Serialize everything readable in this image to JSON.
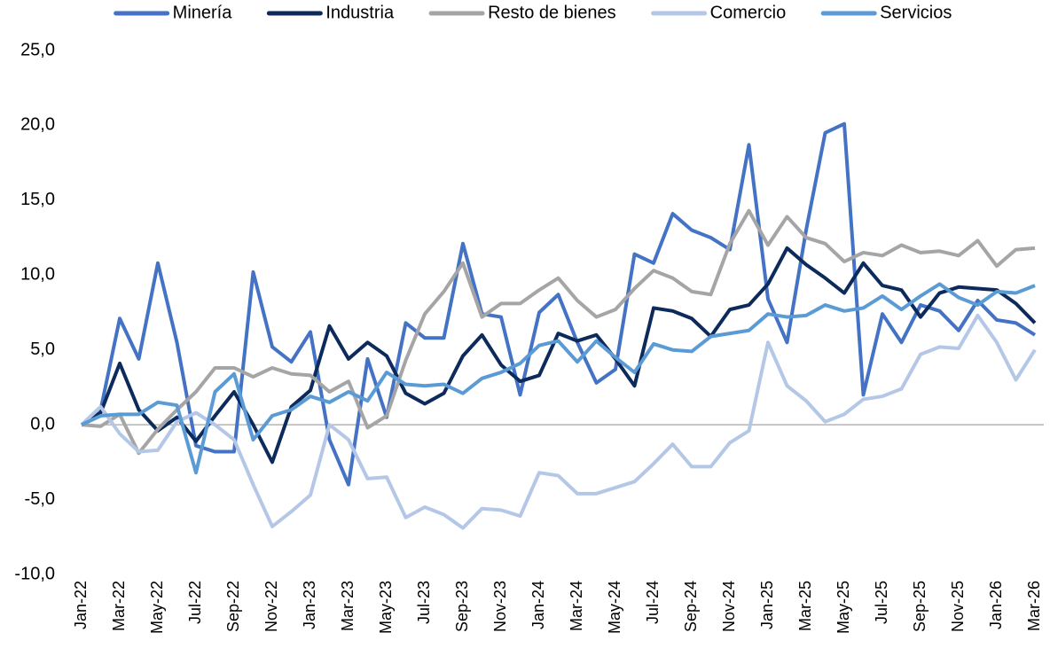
{
  "chart_data": {
    "type": "line",
    "categories": [
      "Jan-22",
      null,
      "Mar-22",
      null,
      "May-22",
      null,
      "Jul-22",
      null,
      "Sep-22",
      null,
      "Nov-22",
      null,
      "Jan-23",
      null,
      "Mar-23",
      null,
      "May-23",
      null,
      "Jul-23",
      null,
      "Sep-23",
      null,
      "Nov-23",
      null,
      "Jan-24",
      null,
      "Mar-24",
      null,
      "May-24",
      null,
      "Jul-24",
      null,
      "Sep-24",
      null,
      "Nov-24",
      null,
      "Jan-25",
      null,
      "Mar-25",
      null,
      "May-25",
      null,
      "Jul-25",
      null,
      "Sep-25",
      null,
      "Nov-25",
      null,
      "Jan-26",
      null,
      "Mar-26"
    ],
    "series": [
      {
        "name": "Minería",
        "color": "#4472c4",
        "values": [
          0,
          1.0,
          7.1,
          4.4,
          10.8,
          5.5,
          -1.4,
          -1.8,
          -1.8,
          10.2,
          5.2,
          4.2,
          6.2,
          -1.0,
          -4.0,
          4.4,
          0.5,
          6.8,
          5.8,
          5.8,
          12.1,
          7.4,
          7.2,
          2.0,
          7.5,
          8.7,
          5.5,
          2.8,
          3.7,
          11.4,
          10.8,
          14.1,
          13.0,
          12.5,
          11.7,
          18.7,
          8.4,
          5.5,
          13.0,
          19.5,
          20.1,
          2.0,
          7.4,
          5.5,
          8.0,
          7.6,
          6.3,
          8.3,
          7.0,
          6.8,
          6.0
        ]
      },
      {
        "name": "Industria",
        "color": "#0c2a5b",
        "values": [
          0,
          0.8,
          4.1,
          1.0,
          -0.4,
          0.5,
          -1.1,
          0.6,
          2.2,
          0,
          -2.5,
          1.2,
          2.3,
          6.6,
          4.4,
          5.5,
          4.6,
          2.1,
          1.4,
          2.1,
          4.6,
          6.0,
          4.0,
          2.9,
          3.3,
          6.1,
          5.6,
          6.0,
          4.4,
          2.6,
          7.8,
          7.6,
          7.1,
          5.9,
          7.7,
          8.0,
          9.4,
          11.8,
          10.7,
          9.8,
          8.8,
          10.8,
          9.3,
          9.0,
          7.2,
          8.8,
          9.2,
          9.1,
          9.0,
          8.1,
          6.8
        ]
      },
      {
        "name": "Resto de bienes",
        "color": "#a5a5a5",
        "values": [
          0,
          -0.1,
          0.7,
          -1.9,
          -0.3,
          1.0,
          2.2,
          3.8,
          3.8,
          3.2,
          3.8,
          3.4,
          3.3,
          2.2,
          2.9,
          -0.2,
          0.6,
          4.3,
          7.4,
          8.9,
          10.8,
          7.2,
          8.1,
          8.1,
          9.0,
          9.8,
          8.3,
          7.2,
          7.7,
          9.1,
          10.3,
          9.8,
          8.9,
          8.7,
          12.1,
          14.3,
          12.0,
          13.9,
          12.5,
          12.1,
          10.9,
          11.5,
          11.3,
          12.0,
          11.5,
          11.6,
          11.3,
          12.3,
          10.6,
          11.7,
          11.8
        ]
      },
      {
        "name": "Comercio",
        "color": "#b4c7e7",
        "values": [
          0,
          1.2,
          -0.6,
          -1.8,
          -1.7,
          0.2,
          0.8,
          0,
          -1.0,
          -4.0,
          -6.8,
          -5.8,
          -4.7,
          0,
          -1.0,
          -3.6,
          -3.5,
          -6.2,
          -5.5,
          -6.0,
          -6.9,
          -5.6,
          -5.7,
          -6.1,
          -3.2,
          -3.4,
          -4.6,
          -4.6,
          -4.2,
          -3.8,
          -2.6,
          -1.3,
          -2.8,
          -2.8,
          -1.2,
          -0.4,
          5.5,
          2.6,
          1.6,
          0.2,
          0.7,
          1.7,
          1.9,
          2.4,
          4.7,
          5.2,
          5.1,
          7.3,
          5.5,
          3.0,
          5.0
        ]
      },
      {
        "name": "Servicios",
        "color": "#5b9bd5",
        "values": [
          0,
          0.6,
          0.7,
          0.7,
          1.5,
          1.3,
          -3.2,
          2.2,
          3.4,
          -1.0,
          0.6,
          1.0,
          1.9,
          1.5,
          2.2,
          1.6,
          3.5,
          2.7,
          2.6,
          2.7,
          2.1,
          3.1,
          3.5,
          4.1,
          5.3,
          5.6,
          4.2,
          5.6,
          4.5,
          3.5,
          5.4,
          5.0,
          4.9,
          5.9,
          6.1,
          6.3,
          7.4,
          7.2,
          7.3,
          8.0,
          7.6,
          7.8,
          8.6,
          7.7,
          8.6,
          9.4,
          8.5,
          8.0,
          8.9,
          8.8,
          9.3
        ]
      }
    ],
    "ylim": [
      -10,
      25
    ],
    "yticks": [
      {
        "value": -10,
        "label": "-10,0"
      },
      {
        "value": -5,
        "label": "-5,0"
      },
      {
        "value": 0,
        "label": "0,0"
      },
      {
        "value": 5,
        "label": "5,0"
      },
      {
        "value": 10,
        "label": "10,0"
      },
      {
        "value": 15,
        "label": "15,0"
      },
      {
        "value": 20,
        "label": "20,0"
      },
      {
        "value": 25,
        "label": "25,0"
      }
    ],
    "grid": false,
    "legend": "top"
  }
}
